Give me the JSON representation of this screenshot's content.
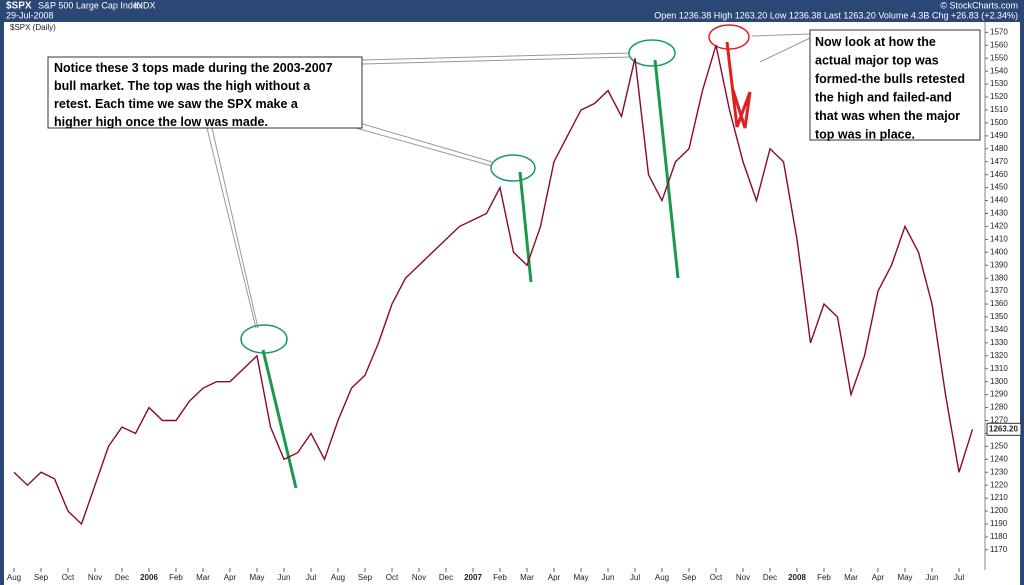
{
  "header": {
    "symbol": "$SPX",
    "name": "S&P 500 Large Cap Index",
    "exchange": "INDX",
    "date": "29-Jul-2008",
    "quote": "Open 1236.38 High 1263.20 Low 1236.38 Last 1263.20 Volume 4.3B Chg +26.83 (+2.34%)",
    "credit": "© StockCharts.com"
  },
  "chart_data": {
    "type": "line",
    "legend_label": "$SPX (Daily)",
    "color": "#8b0a2a",
    "categories": [
      "Aug",
      null,
      "Sep",
      null,
      "Oct",
      null,
      "Nov",
      null,
      "Dec",
      null,
      "2006",
      null,
      "Feb",
      null,
      "Mar",
      null,
      "Apr",
      null,
      "May",
      null,
      "Jun",
      null,
      "Jul",
      null,
      "Aug",
      null,
      "Sep",
      null,
      "Oct",
      null,
      "Nov",
      null,
      "Dec",
      null,
      "2007",
      null,
      "Feb",
      null,
      "Mar",
      null,
      "Apr",
      null,
      "May",
      null,
      "Jun",
      null,
      "Jul",
      null,
      "Aug",
      null,
      "Sep",
      null,
      "Oct",
      null,
      "Nov",
      null,
      "Dec",
      null,
      "2008",
      null,
      "Feb",
      null,
      "Mar",
      null,
      "Apr",
      null,
      "May",
      null,
      "Jun",
      null,
      "Jul",
      null
    ],
    "values": [
      1230,
      1220,
      1230,
      1225,
      1200,
      1190,
      1220,
      1250,
      1265,
      1260,
      1280,
      1270,
      1270,
      1285,
      1295,
      1300,
      1300,
      1310,
      1320,
      1265,
      1240,
      1245,
      1260,
      1240,
      1270,
      1295,
      1305,
      1330,
      1360,
      1380,
      1390,
      1400,
      1410,
      1420,
      1425,
      1430,
      1450,
      1400,
      1390,
      1420,
      1470,
      1490,
      1510,
      1515,
      1525,
      1505,
      1550,
      1460,
      1440,
      1470,
      1480,
      1525,
      1560,
      1510,
      1470,
      1440,
      1480,
      1470,
      1410,
      1330,
      1360,
      1350,
      1290,
      1320,
      1370,
      1390,
      1420,
      1400,
      1360,
      1290,
      1230,
      1263.2
    ],
    "last_label": "1263.20",
    "ylim": [
      1156,
      1578
    ],
    "yticks": [
      1170,
      1180,
      1190,
      1200,
      1210,
      1220,
      1230,
      1240,
      1250,
      1260,
      1270,
      1280,
      1290,
      1300,
      1310,
      1320,
      1330,
      1340,
      1350,
      1360,
      1370,
      1380,
      1390,
      1400,
      1410,
      1420,
      1430,
      1440,
      1450,
      1460,
      1470,
      1480,
      1490,
      1500,
      1510,
      1520,
      1530,
      1540,
      1550,
      1560,
      1570
    ],
    "annotations": [
      {
        "lines": [
          "Notice these 3 tops made during the 2003-2007",
          "bull market. The top was the high without a",
          "retest. Each time we saw the SPX make a",
          "higher high once the low was made."
        ]
      },
      {
        "lines": [
          "Now look at how the",
          "actual major top was",
          "formed-the bulls retested",
          "the high and failed-and",
          "that was when the major",
          "top was in place."
        ]
      }
    ]
  }
}
